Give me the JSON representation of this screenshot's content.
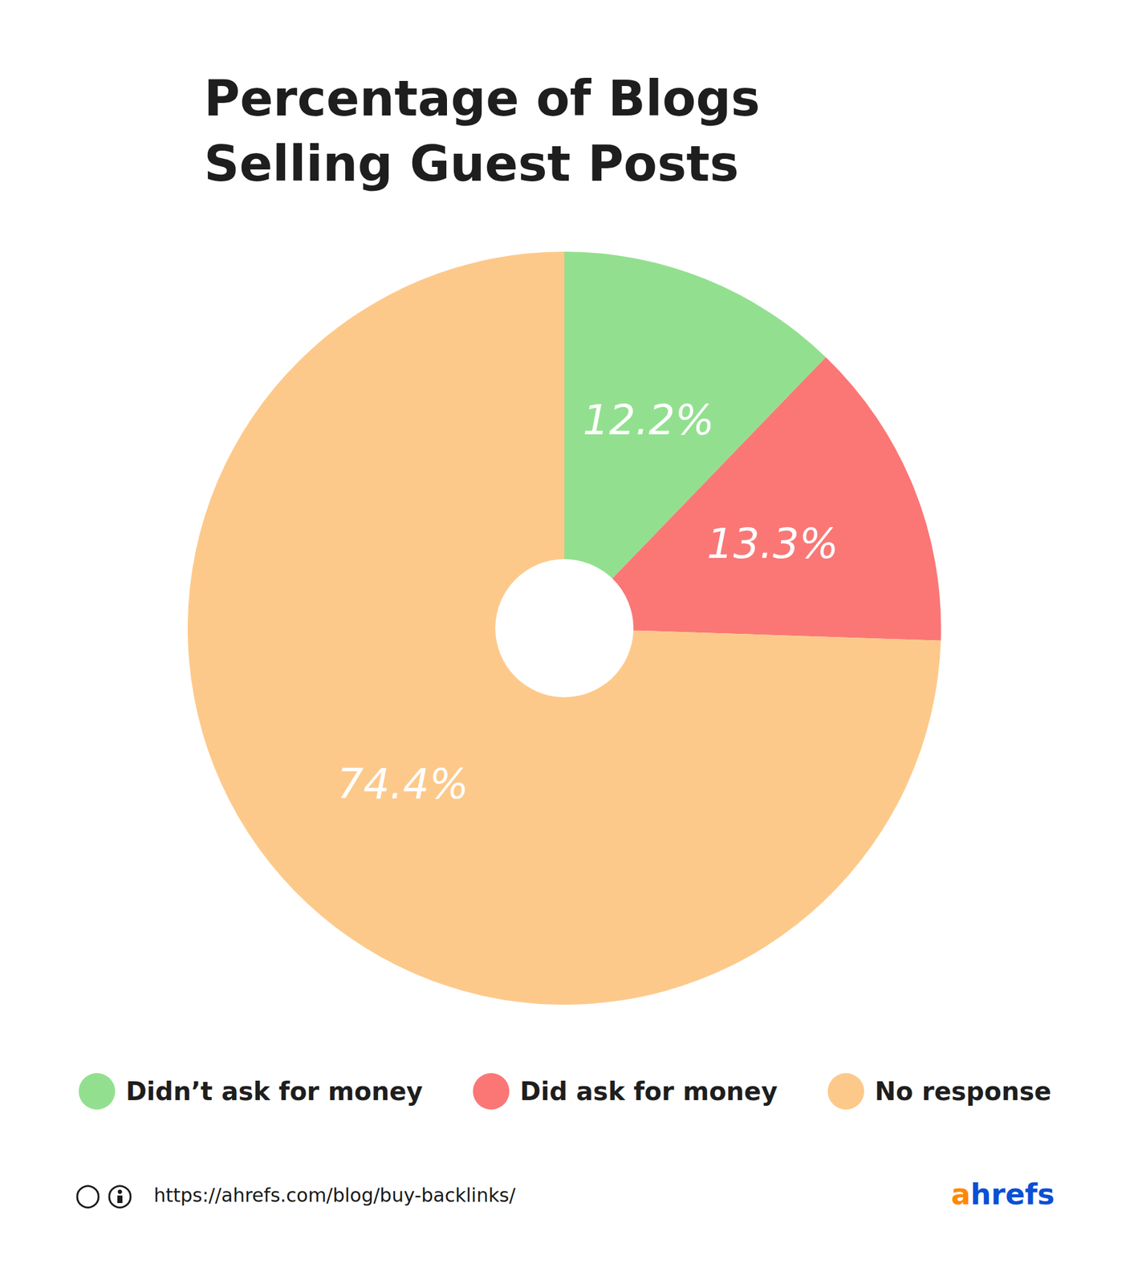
{
  "chart_data": {
    "type": "pie",
    "title": "Percentage of Blogs Selling Guest Posts",
    "categories": [
      "Didn’t ask for money",
      "Did ask for money",
      "No response"
    ],
    "values": [
      12.2,
      13.3,
      74.4
    ],
    "value_labels": [
      "12.2%",
      "13.3%",
      "74.4%"
    ],
    "colors": [
      "#92e08f",
      "#fa7776",
      "#fdc98a"
    ],
    "data_labels": true,
    "legend": "bottom",
    "annotations": [
      "https://ahrefs.com/blog/buy-backlinks/",
      "ahrefs"
    ]
  }
}
